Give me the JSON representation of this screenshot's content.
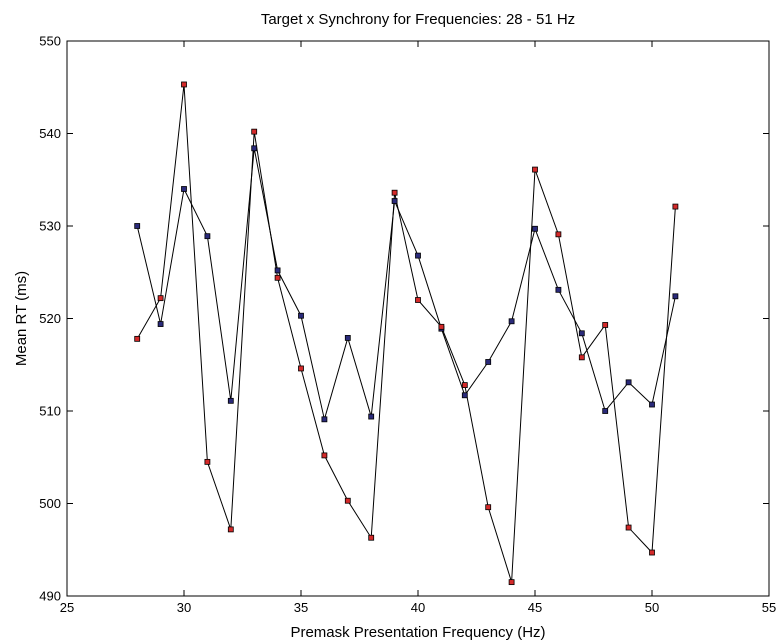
{
  "chart_data": {
    "type": "line",
    "title": "Target x Synchrony for Frequencies: 28 - 51 Hz",
    "xlabel": "Premask Presentation Frequency (Hz)",
    "ylabel": "Mean RT (ms)",
    "xlim": [
      25,
      55
    ],
    "ylim": [
      490,
      550
    ],
    "xticks": [
      25,
      30,
      35,
      40,
      45,
      50,
      55
    ],
    "yticks": [
      490,
      500,
      510,
      520,
      530,
      540,
      550
    ],
    "grid": false,
    "x": [
      28,
      29,
      30,
      31,
      32,
      33,
      34,
      35,
      36,
      37,
      38,
      39,
      40,
      41,
      42,
      43,
      44,
      45,
      46,
      47,
      48,
      49,
      50,
      51
    ],
    "series": [
      {
        "color": "#2a2a7a",
        "marker": "square",
        "values": [
          530.0,
          519.4,
          534.0,
          528.9,
          511.1,
          538.4,
          525.2,
          520.3,
          509.1,
          517.9,
          509.4,
          532.7,
          526.8,
          518.9,
          511.7,
          515.3,
          519.7,
          529.7,
          523.1,
          518.4,
          510.0,
          513.1,
          510.7,
          522.4
        ]
      },
      {
        "color": "#d42a2a",
        "marker": "square",
        "values": [
          517.8,
          522.2,
          545.3,
          504.5,
          497.2,
          540.2,
          524.4,
          514.6,
          505.2,
          500.3,
          496.3,
          533.6,
          522.0,
          519.1,
          512.8,
          499.6,
          491.5,
          536.1,
          529.1,
          515.8,
          519.3,
          497.4,
          494.7,
          532.1
        ]
      }
    ]
  }
}
